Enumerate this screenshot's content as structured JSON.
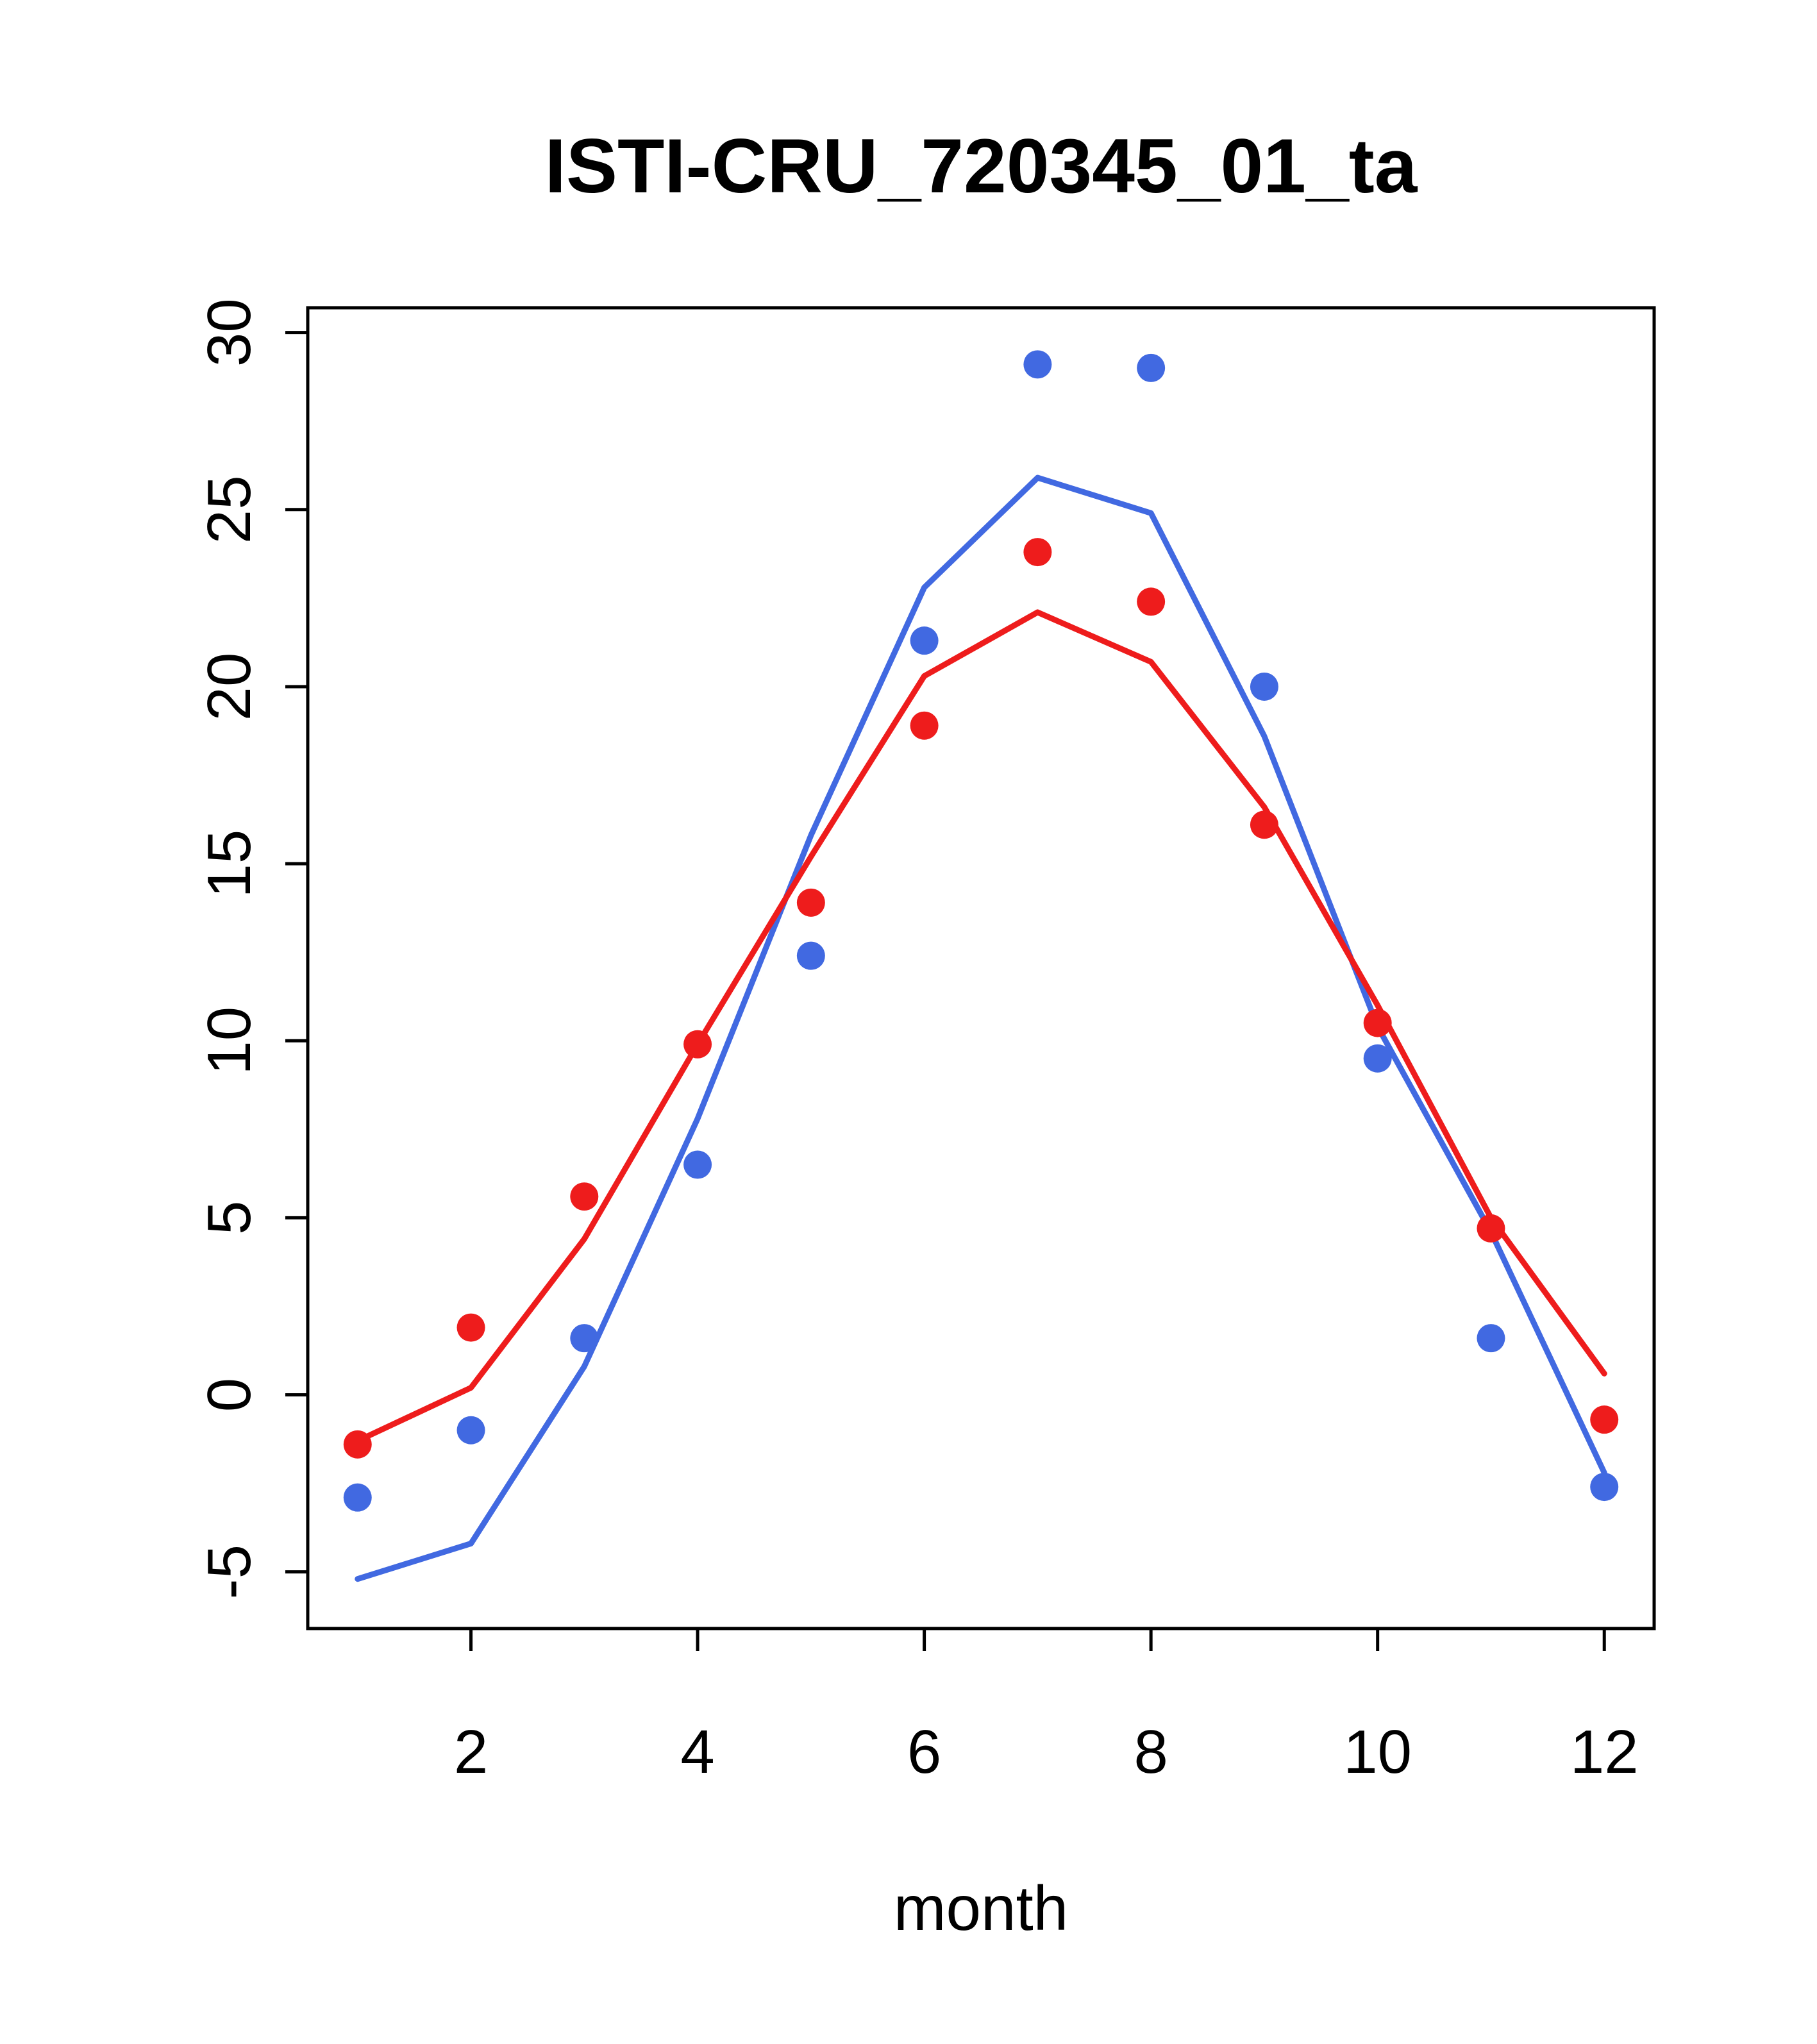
{
  "page": {
    "background": "#ffffff"
  },
  "chart_data": {
    "type": "line",
    "title": "ISTI-CRU_720345_01_ta",
    "xlabel": "month",
    "ylabel": "",
    "x": [
      1,
      2,
      3,
      4,
      5,
      6,
      7,
      8,
      9,
      10,
      11,
      12
    ],
    "xlim": [
      0.56,
      12.44
    ],
    "ylim": [
      -6.6,
      30.7
    ],
    "x_ticks": [
      2,
      4,
      6,
      8,
      10,
      12
    ],
    "y_ticks": [
      -5,
      0,
      5,
      10,
      15,
      20,
      25,
      30
    ],
    "grid": false,
    "legend_position": "none",
    "colors": {
      "blue": "#4169e1",
      "red": "#ee1c1c",
      "axis": "#000000"
    },
    "series": [
      {
        "name": "blue-line",
        "draw": "line",
        "color": "#4169e1",
        "values": [
          -5.2,
          -4.2,
          0.8,
          7.8,
          15.8,
          22.8,
          25.9,
          24.9,
          18.6,
          10.4,
          4.6,
          -2.2
        ]
      },
      {
        "name": "red-line",
        "draw": "line",
        "color": "#ee1c1c",
        "values": [
          -1.3,
          0.2,
          4.4,
          9.9,
          15.2,
          20.3,
          22.1,
          20.7,
          16.6,
          11.0,
          5.0,
          0.6
        ]
      },
      {
        "name": "blue-points",
        "draw": "points",
        "color": "#4169e1",
        "values": [
          -2.9,
          -1.0,
          1.6,
          6.5,
          12.4,
          21.3,
          29.1,
          29.0,
          20.0,
          9.5,
          1.6,
          -2.6
        ]
      },
      {
        "name": "red-points",
        "draw": "points",
        "color": "#ee1c1c",
        "values": [
          -1.4,
          1.9,
          5.6,
          9.9,
          13.9,
          18.9,
          23.8,
          22.4,
          16.1,
          10.5,
          4.7,
          -0.7
        ]
      }
    ]
  }
}
